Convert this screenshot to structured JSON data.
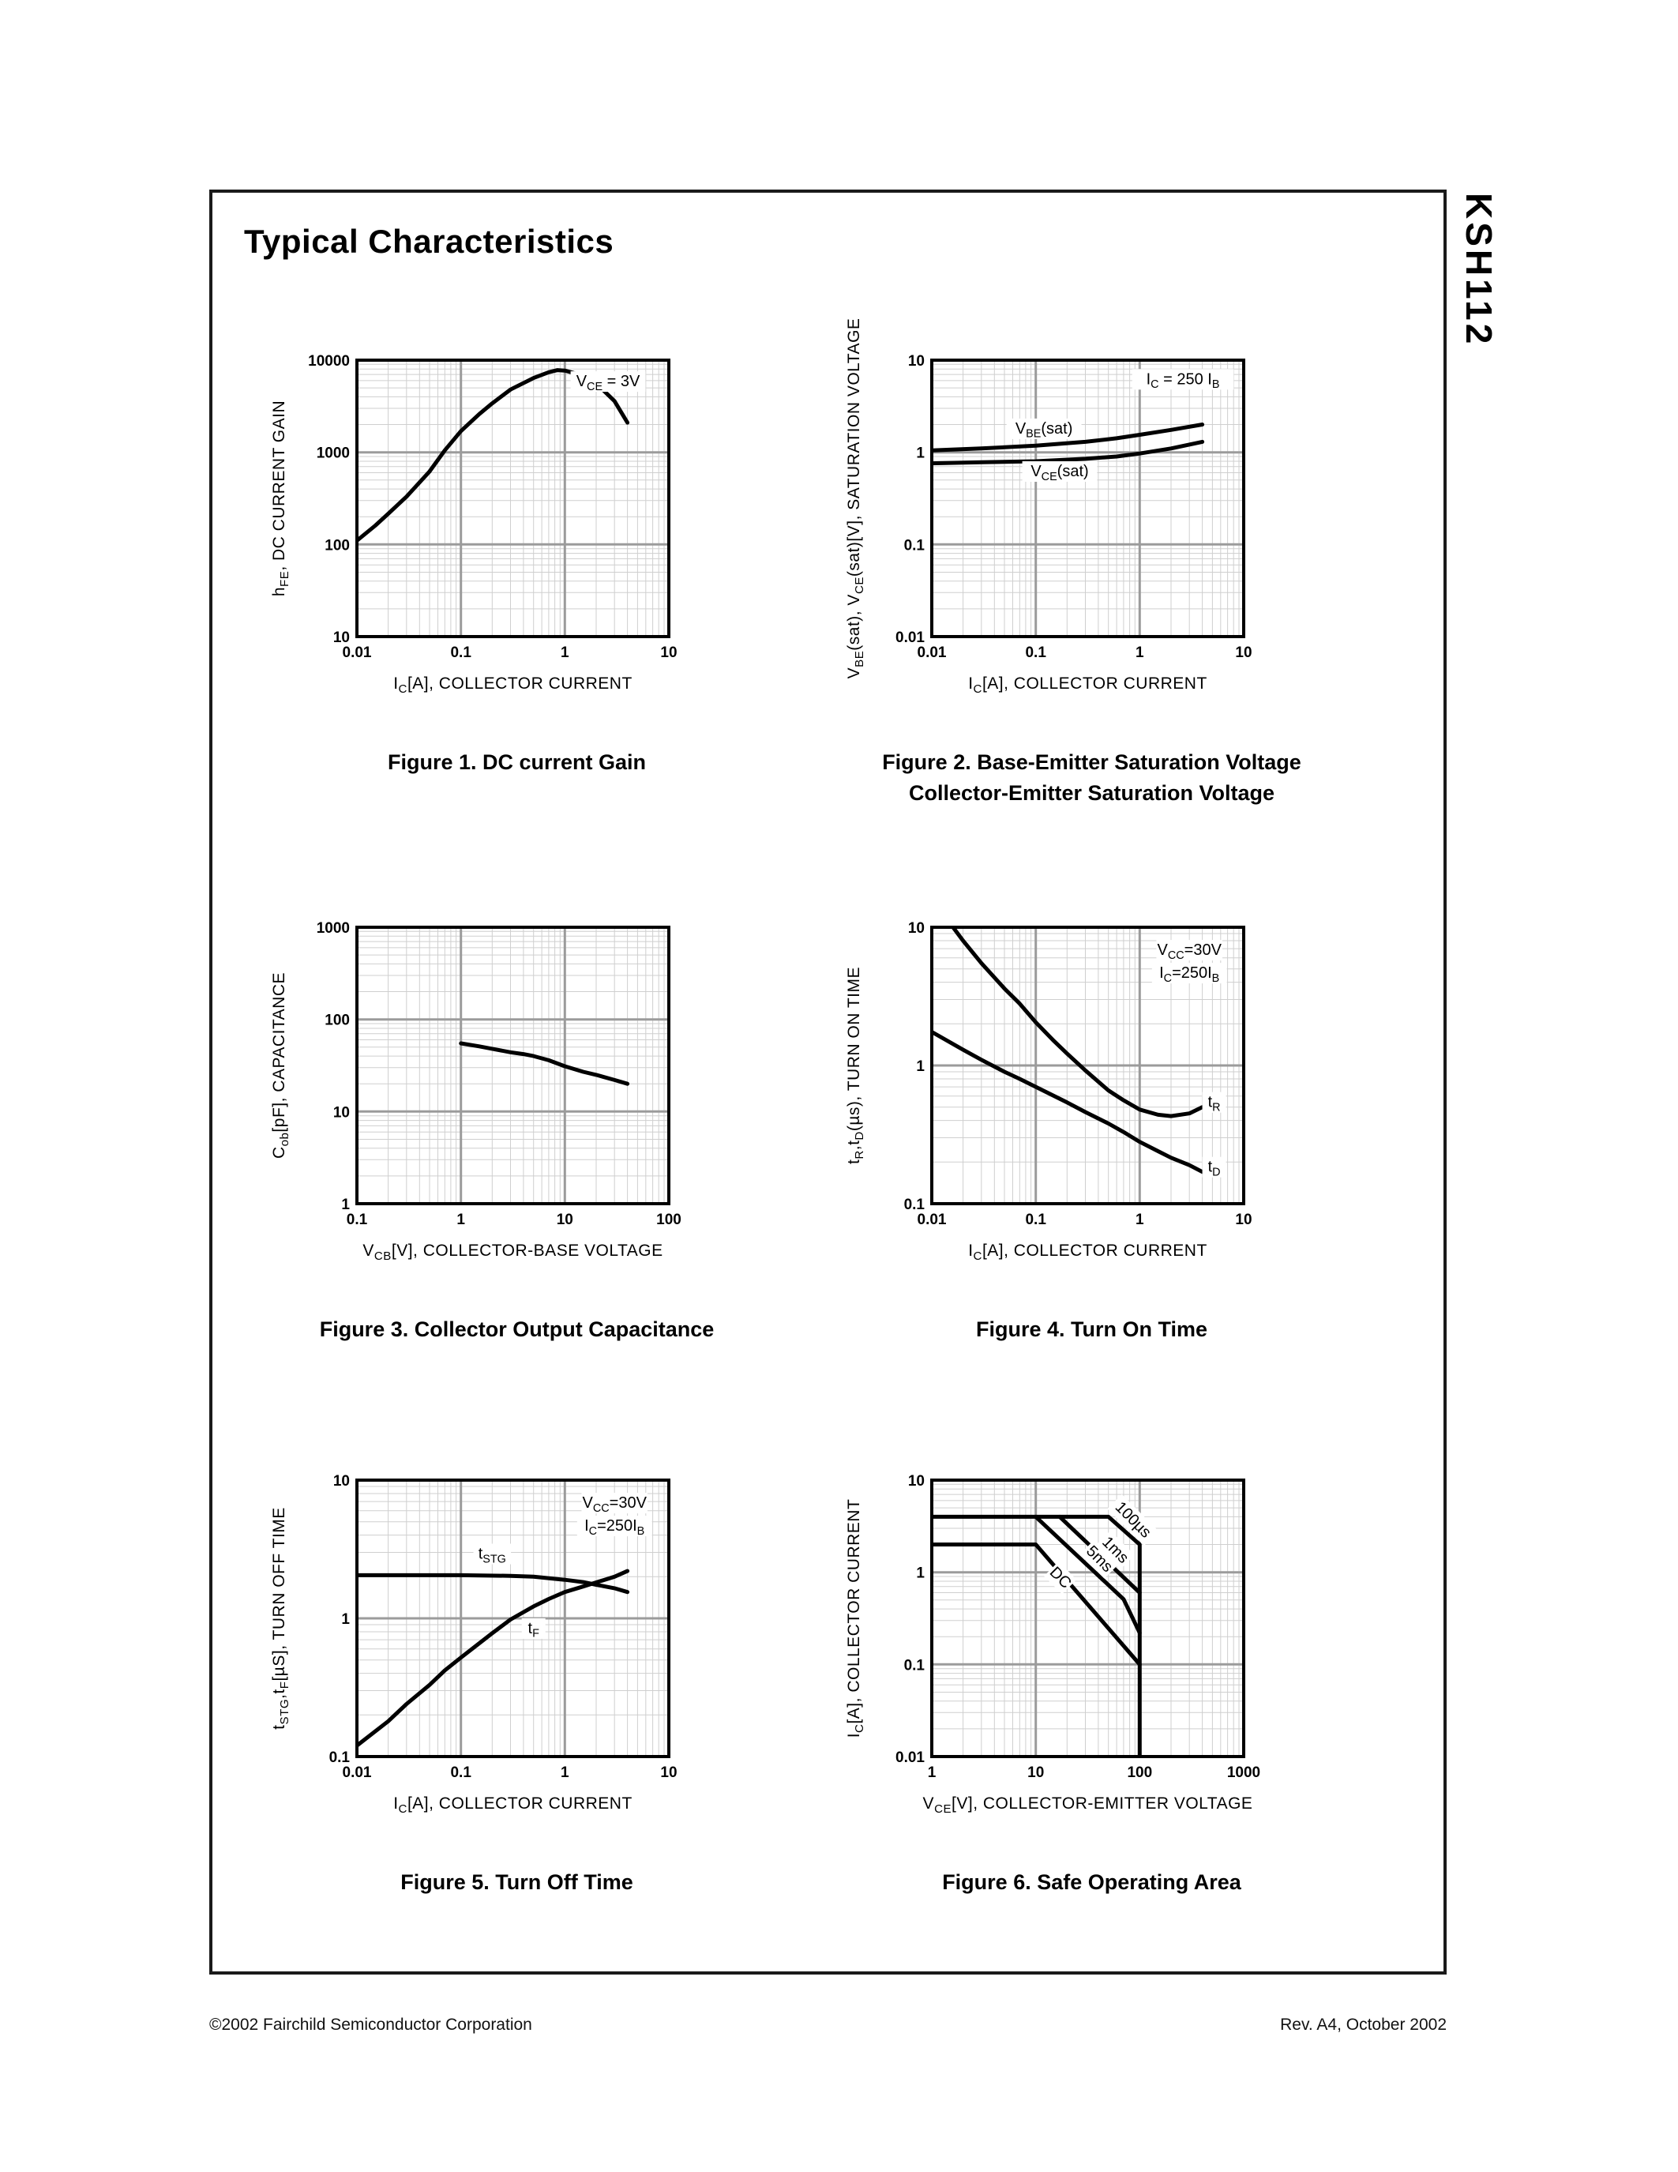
{
  "page": {
    "title": "Typical Characteristics",
    "part_number": "KSH112",
    "footer_left": "©2002 Fairchild Semiconductor Corporation",
    "footer_right": "Rev. A4, October 2002"
  },
  "chart_data": [
    {
      "id": "figure-1",
      "type": "line",
      "grid": "log-log",
      "legend": "none",
      "caption": [
        "Figure 1. DC current Gain"
      ],
      "xlabel": [
        {
          "t": "I"
        },
        {
          "t": "C",
          "sub": true
        },
        {
          "t": "[A], COLLECTOR CURRENT"
        }
      ],
      "ylabel": [
        {
          "t": "h"
        },
        {
          "t": "FE",
          "sub": true
        },
        {
          "t": ", DC CURRENT GAIN"
        }
      ],
      "xlim": [
        0.01,
        10
      ],
      "ylim": [
        10,
        10000
      ],
      "xticks": [
        "0.01",
        "0.1",
        "1",
        "10"
      ],
      "yticks": [
        "10",
        "100",
        "1000",
        "10000"
      ],
      "annotations": [
        {
          "x": 2.6,
          "y": 5200,
          "segments": [
            {
              "t": "V"
            },
            {
              "t": "CE",
              "sub": true
            },
            {
              "t": " = 3V"
            }
          ]
        }
      ],
      "series": [
        {
          "name": "hFE",
          "points": [
            [
              0.01,
              110
            ],
            [
              0.015,
              160
            ],
            [
              0.02,
              215
            ],
            [
              0.03,
              330
            ],
            [
              0.05,
              620
            ],
            [
              0.07,
              1050
            ],
            [
              0.1,
              1700
            ],
            [
              0.15,
              2600
            ],
            [
              0.2,
              3400
            ],
            [
              0.3,
              4800
            ],
            [
              0.5,
              6400
            ],
            [
              0.7,
              7400
            ],
            [
              0.85,
              7800
            ],
            [
              1,
              7700
            ],
            [
              1.5,
              6800
            ],
            [
              2,
              5600
            ],
            [
              3,
              3600
            ],
            [
              4,
              2100
            ]
          ]
        }
      ]
    },
    {
      "id": "figure-2",
      "type": "line",
      "grid": "log-log",
      "legend": "inline-labels",
      "caption": [
        "Figure 2. Base-Emitter Saturation Voltage",
        "Collector-Emitter Saturation Voltage"
      ],
      "xlabel": [
        {
          "t": "I"
        },
        {
          "t": "C",
          "sub": true
        },
        {
          "t": "[A], COLLECTOR CURRENT"
        }
      ],
      "ylabel": [
        {
          "t": "V"
        },
        {
          "t": "BE",
          "sub": true
        },
        {
          "t": "(sat), V"
        },
        {
          "t": "CE",
          "sub": true
        },
        {
          "t": "(sat)[V], SATURATION VOLTAGE"
        }
      ],
      "xlim": [
        0.01,
        10
      ],
      "ylim": [
        0.01,
        10
      ],
      "xticks": [
        "0.01",
        "0.1",
        "1",
        "10"
      ],
      "yticks": [
        "0.01",
        "0.1",
        "1",
        "10"
      ],
      "annotations": [
        {
          "x": 2.6,
          "y": 5.5,
          "segments": [
            {
              "t": "I"
            },
            {
              "t": "C",
              "sub": true
            },
            {
              "t": " = 250 I"
            },
            {
              "t": "B",
              "sub": true
            }
          ]
        },
        {
          "x": 0.12,
          "y": 1.6,
          "segments": [
            {
              "t": "V"
            },
            {
              "t": "BE",
              "sub": true
            },
            {
              "t": "(sat)"
            }
          ]
        },
        {
          "x": 0.17,
          "y": 0.55,
          "segments": [
            {
              "t": "V"
            },
            {
              "t": "CE",
              "sub": true
            },
            {
              "t": "(sat)"
            }
          ]
        }
      ],
      "series": [
        {
          "name": "VBE(sat)",
          "points": [
            [
              0.01,
              1.05
            ],
            [
              0.03,
              1.1
            ],
            [
              0.1,
              1.18
            ],
            [
              0.3,
              1.3
            ],
            [
              0.6,
              1.42
            ],
            [
              1,
              1.55
            ],
            [
              2,
              1.75
            ],
            [
              4,
              2.0
            ]
          ]
        },
        {
          "name": "VCE(sat)",
          "points": [
            [
              0.01,
              0.76
            ],
            [
              0.03,
              0.78
            ],
            [
              0.1,
              0.8
            ],
            [
              0.3,
              0.85
            ],
            [
              0.6,
              0.9
            ],
            [
              1,
              0.97
            ],
            [
              2,
              1.1
            ],
            [
              4,
              1.3
            ]
          ]
        }
      ]
    },
    {
      "id": "figure-3",
      "type": "line",
      "grid": "log-log",
      "legend": "none",
      "caption": [
        "Figure 3. Collector Output Capacitance"
      ],
      "xlabel": [
        {
          "t": "V"
        },
        {
          "t": "CB",
          "sub": true
        },
        {
          "t": "[V], COLLECTOR-BASE VOLTAGE"
        }
      ],
      "ylabel": [
        {
          "t": "C"
        },
        {
          "t": "ob",
          "sub": true
        },
        {
          "t": "[pF], CAPACITANCE"
        }
      ],
      "xlim": [
        0.1,
        100
      ],
      "ylim": [
        1,
        1000
      ],
      "xticks": [
        "0.1",
        "1",
        "10",
        "100"
      ],
      "yticks": [
        "1",
        "10",
        "100",
        "1000"
      ],
      "annotations": [],
      "series": [
        {
          "name": "Cob",
          "points": [
            [
              1,
              55
            ],
            [
              1.5,
              51
            ],
            [
              2,
              48
            ],
            [
              3,
              44
            ],
            [
              4,
              42
            ],
            [
              5,
              40
            ],
            [
              7,
              36
            ],
            [
              10,
              31
            ],
            [
              15,
              27
            ],
            [
              20,
              25
            ],
            [
              30,
              22
            ],
            [
              40,
              20
            ]
          ]
        }
      ]
    },
    {
      "id": "figure-4",
      "type": "line",
      "grid": "log-log",
      "legend": "inline-labels",
      "caption": [
        "Figure 4. Turn On Time"
      ],
      "xlabel": [
        {
          "t": "I"
        },
        {
          "t": "C",
          "sub": true
        },
        {
          "t": "[A], COLLECTOR CURRENT"
        }
      ],
      "ylabel": [
        {
          "t": "t"
        },
        {
          "t": "R",
          "sub": true
        },
        {
          "t": ",t"
        },
        {
          "t": "D",
          "sub": true
        },
        {
          "t": "(µs), TURN ON TIME"
        }
      ],
      "xlim": [
        0.01,
        10
      ],
      "ylim": [
        0.1,
        10
      ],
      "xticks": [
        "0.01",
        "0.1",
        "1",
        "10"
      ],
      "yticks": [
        "0.1",
        "1",
        "10"
      ],
      "annotations": [
        {
          "x": 3.0,
          "y": 6.3,
          "segments": [
            {
              "t": "V"
            },
            {
              "t": "CC",
              "sub": true
            },
            {
              "t": "=30V"
            }
          ]
        },
        {
          "x": 3.0,
          "y": 4.3,
          "segments": [
            {
              "t": "I"
            },
            {
              "t": "C",
              "sub": true
            },
            {
              "t": "=250I"
            },
            {
              "t": "B",
              "sub": true
            }
          ]
        },
        {
          "x": 5.2,
          "y": 0.5,
          "segments": [
            {
              "t": "t"
            },
            {
              "t": "R",
              "sub": true
            }
          ]
        },
        {
          "x": 5.2,
          "y": 0.17,
          "segments": [
            {
              "t": "t"
            },
            {
              "t": "D",
              "sub": true
            }
          ]
        }
      ],
      "series": [
        {
          "name": "tR",
          "points": [
            [
              0.016,
              10
            ],
            [
              0.02,
              8
            ],
            [
              0.03,
              5.5
            ],
            [
              0.05,
              3.6
            ],
            [
              0.07,
              2.8
            ],
            [
              0.1,
              2.05
            ],
            [
              0.15,
              1.5
            ],
            [
              0.2,
              1.22
            ],
            [
              0.3,
              0.92
            ],
            [
              0.5,
              0.66
            ],
            [
              0.7,
              0.56
            ],
            [
              1,
              0.48
            ],
            [
              1.5,
              0.44
            ],
            [
              2,
              0.43
            ],
            [
              3,
              0.45
            ],
            [
              4,
              0.5
            ]
          ]
        },
        {
          "name": "tD",
          "points": [
            [
              0.01,
              1.75
            ],
            [
              0.02,
              1.3
            ],
            [
              0.03,
              1.1
            ],
            [
              0.05,
              0.9
            ],
            [
              0.07,
              0.8
            ],
            [
              0.1,
              0.7
            ],
            [
              0.2,
              0.54
            ],
            [
              0.3,
              0.46
            ],
            [
              0.5,
              0.38
            ],
            [
              0.7,
              0.33
            ],
            [
              1,
              0.28
            ],
            [
              1.5,
              0.24
            ],
            [
              2,
              0.215
            ],
            [
              3,
              0.19
            ],
            [
              4,
              0.17
            ]
          ]
        }
      ]
    },
    {
      "id": "figure-5",
      "type": "line",
      "grid": "log-log",
      "legend": "inline-labels",
      "caption": [
        "Figure 5. Turn Off Time"
      ],
      "xlabel": [
        {
          "t": "I"
        },
        {
          "t": "C",
          "sub": true
        },
        {
          "t": "[A], COLLECTOR CURRENT"
        }
      ],
      "ylabel": [
        {
          "t": "t"
        },
        {
          "t": "STG",
          "sub": true
        },
        {
          "t": ",t"
        },
        {
          "t": "F",
          "sub": true
        },
        {
          "t": "[µS], TURN OFF TIME"
        }
      ],
      "xlim": [
        0.01,
        10
      ],
      "ylim": [
        0.1,
        10
      ],
      "xticks": [
        "0.01",
        "0.1",
        "1",
        "10"
      ],
      "yticks": [
        "0.1",
        "1",
        "10"
      ],
      "annotations": [
        {
          "x": 3.0,
          "y": 6.3,
          "segments": [
            {
              "t": "V"
            },
            {
              "t": "CC",
              "sub": true
            },
            {
              "t": "=30V"
            }
          ]
        },
        {
          "x": 3.0,
          "y": 4.3,
          "segments": [
            {
              "t": "I"
            },
            {
              "t": "C",
              "sub": true
            },
            {
              "t": "=250I"
            },
            {
              "t": "B",
              "sub": true
            }
          ]
        },
        {
          "x": 0.2,
          "y": 2.7,
          "segments": [
            {
              "t": "t"
            },
            {
              "t": "STG",
              "sub": true
            }
          ]
        },
        {
          "x": 0.5,
          "y": 0.78,
          "segments": [
            {
              "t": "t"
            },
            {
              "t": "F",
              "sub": true
            }
          ]
        }
      ],
      "series": [
        {
          "name": "tSTG",
          "points": [
            [
              0.01,
              2.05
            ],
            [
              0.1,
              2.05
            ],
            [
              0.3,
              2.03
            ],
            [
              0.5,
              2.0
            ],
            [
              1,
              1.9
            ],
            [
              1.5,
              1.83
            ],
            [
              2,
              1.75
            ],
            [
              3,
              1.65
            ],
            [
              4,
              1.55
            ]
          ]
        },
        {
          "name": "tF",
          "points": [
            [
              0.01,
              0.12
            ],
            [
              0.02,
              0.18
            ],
            [
              0.03,
              0.24
            ],
            [
              0.05,
              0.33
            ],
            [
              0.07,
              0.42
            ],
            [
              0.1,
              0.52
            ],
            [
              0.15,
              0.66
            ],
            [
              0.2,
              0.78
            ],
            [
              0.3,
              0.98
            ],
            [
              0.5,
              1.22
            ],
            [
              0.7,
              1.38
            ],
            [
              1,
              1.55
            ],
            [
              1.5,
              1.7
            ],
            [
              2,
              1.82
            ],
            [
              3,
              2.0
            ],
            [
              4,
              2.2
            ]
          ]
        }
      ]
    },
    {
      "id": "figure-6",
      "type": "line",
      "grid": "log-log",
      "legend": "inline-labels",
      "caption": [
        "Figure 6. Safe Operating Area"
      ],
      "xlabel": [
        {
          "t": "V"
        },
        {
          "t": "CE",
          "sub": true
        },
        {
          "t": "[V], COLLECTOR-EMITTER VOLTAGE"
        }
      ],
      "ylabel": [
        {
          "t": "I"
        },
        {
          "t": "C",
          "sub": true
        },
        {
          "t": "[A], COLLECTOR CURRENT"
        }
      ],
      "xlim": [
        1,
        1000
      ],
      "ylim": [
        0.01,
        10
      ],
      "xticks": [
        "1",
        "10",
        "100",
        "1000"
      ],
      "yticks": [
        "0.01",
        "0.1",
        "1",
        "10"
      ],
      "annotations": [
        {
          "x": 80,
          "y": 3.4,
          "rotate": 45,
          "segments": [
            {
              "t": "100µs"
            }
          ]
        },
        {
          "x": 54,
          "y": 1.6,
          "rotate": 45,
          "segments": [
            {
              "t": "1ms"
            }
          ]
        },
        {
          "x": 38,
          "y": 1.28,
          "rotate": 45,
          "segments": [
            {
              "t": "5ms"
            }
          ]
        },
        {
          "x": 16,
          "y": 0.8,
          "rotate": 45,
          "segments": [
            {
              "t": "DC"
            }
          ]
        }
      ],
      "series": [
        {
          "name": "100us-limit",
          "points": [
            [
              1,
              4
            ],
            [
              50,
              4
            ],
            [
              100,
              2
            ],
            [
              100,
              0.01
            ]
          ]
        },
        {
          "name": "1ms-limit",
          "points": [
            [
              17,
              4
            ],
            [
              100,
              0.6
            ]
          ]
        },
        {
          "name": "5ms-limit",
          "points": [
            [
              10,
              4
            ],
            [
              70,
              0.51
            ],
            [
              100,
              0.22
            ]
          ]
        },
        {
          "name": "DC-limit",
          "points": [
            [
              1,
              2
            ],
            [
              10,
              2
            ],
            [
              100,
              0.1
            ]
          ]
        }
      ]
    }
  ]
}
